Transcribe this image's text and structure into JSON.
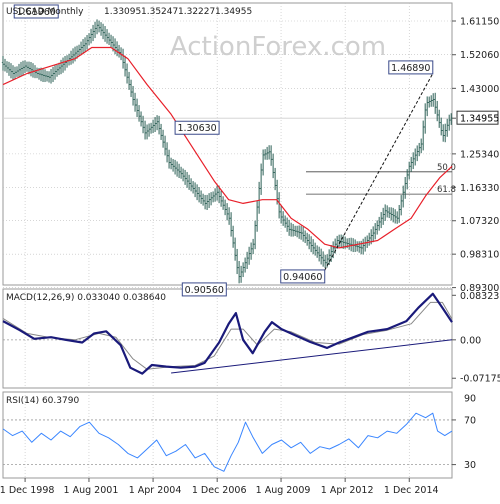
{
  "chart_data": [
    {
      "type": "candlestick",
      "title": "USDCAD Monthly",
      "ohlc_values": [
        "1.33095",
        "1.35247",
        "1.32227",
        "1.34955"
      ],
      "watermark": "ActionForex.com",
      "ylim": [
        0.9,
        1.66
      ],
      "y_ticks": [
        "1.61150",
        "1.52060",
        "1.43000",
        "1.34955",
        "1.25340",
        "1.16330",
        "1.07320",
        "0.98310",
        "0.89300"
      ],
      "y_tick_values": [
        1.6115,
        1.5206,
        1.43,
        1.34955,
        1.2534,
        1.1633,
        1.0732,
        0.9831,
        0.893
      ],
      "current_price": 1.34955,
      "x_ticks": [
        "1 Dec 1998",
        "1 Aug 2001",
        "1 Apr 2004",
        "1 Dec 2006",
        "1 Aug 2009",
        "1 Apr 2012",
        "1 Dec 2014"
      ],
      "x_tick_values": [
        1998.92,
        2001.58,
        2004.25,
        2006.92,
        2009.58,
        2012.25,
        2014.92
      ],
      "xlim": [
        1998.0,
        2016.7
      ],
      "price_path": [
        [
          1998.0,
          1.5
        ],
        [
          1998.5,
          1.47
        ],
        [
          1999.0,
          1.49
        ],
        [
          1999.5,
          1.47
        ],
        [
          2000.0,
          1.46
        ],
        [
          2000.5,
          1.49
        ],
        [
          2001.0,
          1.52
        ],
        [
          2001.5,
          1.55
        ],
        [
          2002.0,
          1.6
        ],
        [
          2002.5,
          1.56
        ],
        [
          2003.0,
          1.52
        ],
        [
          2003.5,
          1.4
        ],
        [
          2004.0,
          1.31
        ],
        [
          2004.5,
          1.34
        ],
        [
          2005.0,
          1.23
        ],
        [
          2005.5,
          1.2
        ],
        [
          2006.0,
          1.16
        ],
        [
          2006.5,
          1.12
        ],
        [
          2007.0,
          1.15
        ],
        [
          2007.5,
          1.08
        ],
        [
          2007.9,
          0.92
        ],
        [
          2008.5,
          1.01
        ],
        [
          2008.9,
          1.25
        ],
        [
          2009.2,
          1.26
        ],
        [
          2009.6,
          1.09
        ],
        [
          2010.0,
          1.05
        ],
        [
          2010.5,
          1.04
        ],
        [
          2011.0,
          1.0
        ],
        [
          2011.5,
          0.96
        ],
        [
          2012.0,
          1.02
        ],
        [
          2012.5,
          1.01
        ],
        [
          2013.0,
          1.0
        ],
        [
          2013.5,
          1.04
        ],
        [
          2014.0,
          1.1
        ],
        [
          2014.5,
          1.08
        ],
        [
          2015.0,
          1.22
        ],
        [
          2015.5,
          1.28
        ],
        [
          2015.7,
          1.39
        ],
        [
          2016.0,
          1.4
        ],
        [
          2016.4,
          1.3
        ],
        [
          2016.7,
          1.35
        ]
      ],
      "series": [
        {
          "name": "moving average",
          "color": "#e8202a",
          "points": [
            [
              1998.0,
              1.44
            ],
            [
              1999.0,
              1.47
            ],
            [
              2000.0,
              1.49
            ],
            [
              2001.0,
              1.51
            ],
            [
              2001.7,
              1.54
            ],
            [
              2002.5,
              1.54
            ],
            [
              2003.2,
              1.51
            ],
            [
              2004.0,
              1.44
            ],
            [
              2005.0,
              1.36
            ],
            [
              2006.0,
              1.26
            ],
            [
              2006.8,
              1.18
            ],
            [
              2007.4,
              1.13
            ],
            [
              2008.0,
              1.12
            ],
            [
              2008.8,
              1.13
            ],
            [
              2009.4,
              1.13
            ],
            [
              2010.0,
              1.08
            ],
            [
              2010.7,
              1.05
            ],
            [
              2011.4,
              1.01
            ],
            [
              2012.0,
              1.0
            ],
            [
              2012.8,
              1.01
            ],
            [
              2013.6,
              1.02
            ],
            [
              2014.3,
              1.05
            ],
            [
              2015.0,
              1.08
            ],
            [
              2015.6,
              1.14
            ],
            [
              2016.2,
              1.19
            ],
            [
              2016.7,
              1.22
            ]
          ]
        },
        {
          "name": "trendline",
          "color": "#111111",
          "dashed": true,
          "points": [
            [
              2011.4,
              0.94
            ],
            [
              2015.9,
              1.47
            ]
          ]
        }
      ],
      "annotations": [
        {
          "label": "1.61960",
          "x": 2000.3,
          "y": 1.6196
        },
        {
          "label": "1.30630",
          "x": 2007.0,
          "y": 1.3063
        },
        {
          "label": "0.90560",
          "x": 2007.3,
          "y": 0.9056
        },
        {
          "label": "0.94060",
          "x": 2011.4,
          "y": 0.9406
        },
        {
          "label": "1.46890",
          "x": 2015.9,
          "y": 1.4689
        }
      ],
      "fib_levels": [
        {
          "label": "50.0",
          "y": 1.205
        },
        {
          "label": "61.8",
          "y": 1.145
        }
      ]
    },
    {
      "type": "line",
      "title": "MACD(12,26,9) 0.033040 0.038640",
      "ylim": [
        -0.09,
        0.095
      ],
      "y_ticks": [
        "0.083235",
        "0.00",
        "-0.071752"
      ],
      "y_tick_values": [
        0.083235,
        0.0,
        -0.071752
      ],
      "xlim": [
        1998.0,
        2016.7
      ],
      "series": [
        {
          "name": "MACD",
          "color": "#1a1a7a",
          "points": [
            [
              1998.0,
              0.035
            ],
            [
              1998.7,
              0.018
            ],
            [
              1999.3,
              0.002
            ],
            [
              2000.0,
              0.005
            ],
            [
              2000.6,
              0.0
            ],
            [
              2001.3,
              -0.005
            ],
            [
              2001.8,
              0.012
            ],
            [
              2002.3,
              0.016
            ],
            [
              2002.9,
              -0.01
            ],
            [
              2003.3,
              -0.052
            ],
            [
              2003.8,
              -0.063
            ],
            [
              2004.2,
              -0.047
            ],
            [
              2004.8,
              -0.05
            ],
            [
              2005.4,
              -0.052
            ],
            [
              2006.0,
              -0.05
            ],
            [
              2006.4,
              -0.043
            ],
            [
              2007.0,
              -0.005
            ],
            [
              2007.4,
              0.03
            ],
            [
              2007.7,
              0.05
            ],
            [
              2008.0,
              0.0
            ],
            [
              2008.4,
              -0.025
            ],
            [
              2008.9,
              0.015
            ],
            [
              2009.2,
              0.033
            ],
            [
              2009.6,
              0.02
            ],
            [
              2010.2,
              0.008
            ],
            [
              2010.8,
              -0.004
            ],
            [
              2011.5,
              -0.015
            ],
            [
              2012.0,
              -0.005
            ],
            [
              2012.6,
              0.005
            ],
            [
              2013.2,
              0.015
            ],
            [
              2014.0,
              0.02
            ],
            [
              2014.8,
              0.035
            ],
            [
              2015.3,
              0.06
            ],
            [
              2015.9,
              0.086
            ],
            [
              2016.3,
              0.06
            ],
            [
              2016.7,
              0.033
            ]
          ]
        },
        {
          "name": "signal",
          "color": "#888888",
          "points": [
            [
              1998.0,
              0.04
            ],
            [
              1999.0,
              0.012
            ],
            [
              2000.0,
              0.004
            ],
            [
              2001.0,
              0.0
            ],
            [
              2002.0,
              0.012
            ],
            [
              2002.7,
              0.005
            ],
            [
              2003.4,
              -0.035
            ],
            [
              2004.0,
              -0.055
            ],
            [
              2005.0,
              -0.05
            ],
            [
              2006.0,
              -0.048
            ],
            [
              2006.8,
              -0.03
            ],
            [
              2007.5,
              0.02
            ],
            [
              2008.0,
              0.02
            ],
            [
              2008.6,
              -0.01
            ],
            [
              2009.3,
              0.02
            ],
            [
              2010.0,
              0.015
            ],
            [
              2011.0,
              -0.005
            ],
            [
              2012.0,
              -0.008
            ],
            [
              2013.0,
              0.01
            ],
            [
              2014.0,
              0.018
            ],
            [
              2015.0,
              0.03
            ],
            [
              2015.8,
              0.07
            ],
            [
              2016.3,
              0.07
            ],
            [
              2016.7,
              0.039
            ]
          ]
        },
        {
          "name": "trendline",
          "color": "#1a1a7a",
          "points": [
            [
              2005.0,
              -0.062
            ],
            [
              2016.7,
              0.0
            ]
          ]
        }
      ]
    },
    {
      "type": "line",
      "title": "RSI(14) 60.3790",
      "ylim": [
        18,
        95
      ],
      "y_ticks": [
        "70",
        "30"
      ],
      "y_tick_values": [
        70,
        30
      ],
      "extra_tick": {
        "label": "90",
        "value": 90
      },
      "xlim": [
        1998.0,
        2016.7
      ],
      "series": [
        {
          "name": "RSI",
          "color": "#3a86ff",
          "points": [
            [
              1998.0,
              62
            ],
            [
              1998.4,
              56
            ],
            [
              1998.8,
              60
            ],
            [
              1999.2,
              50
            ],
            [
              1999.6,
              58
            ],
            [
              2000.0,
              52
            ],
            [
              2000.4,
              60
            ],
            [
              2000.8,
              55
            ],
            [
              2001.2,
              64
            ],
            [
              2001.6,
              68
            ],
            [
              2002.0,
              58
            ],
            [
              2002.4,
              54
            ],
            [
              2002.8,
              48
            ],
            [
              2003.2,
              40
            ],
            [
              2003.6,
              36
            ],
            [
              2004.0,
              44
            ],
            [
              2004.4,
              52
            ],
            [
              2004.8,
              38
            ],
            [
              2005.2,
              42
            ],
            [
              2005.6,
              48
            ],
            [
              2006.0,
              36
            ],
            [
              2006.4,
              40
            ],
            [
              2006.8,
              28
            ],
            [
              2007.2,
              24
            ],
            [
              2007.5,
              38
            ],
            [
              2007.8,
              50
            ],
            [
              2008.1,
              68
            ],
            [
              2008.4,
              55
            ],
            [
              2008.8,
              40
            ],
            [
              2009.2,
              48
            ],
            [
              2009.6,
              52
            ],
            [
              2010.0,
              45
            ],
            [
              2010.4,
              50
            ],
            [
              2010.8,
              40
            ],
            [
              2011.2,
              46
            ],
            [
              2011.6,
              44
            ],
            [
              2012.0,
              48
            ],
            [
              2012.4,
              53
            ],
            [
              2012.8,
              45
            ],
            [
              2013.2,
              56
            ],
            [
              2013.6,
              54
            ],
            [
              2014.0,
              60
            ],
            [
              2014.4,
              58
            ],
            [
              2014.8,
              66
            ],
            [
              2015.2,
              76
            ],
            [
              2015.6,
              72
            ],
            [
              2015.9,
              76
            ],
            [
              2016.1,
              60
            ],
            [
              2016.4,
              56
            ],
            [
              2016.7,
              60
            ]
          ]
        }
      ]
    }
  ]
}
